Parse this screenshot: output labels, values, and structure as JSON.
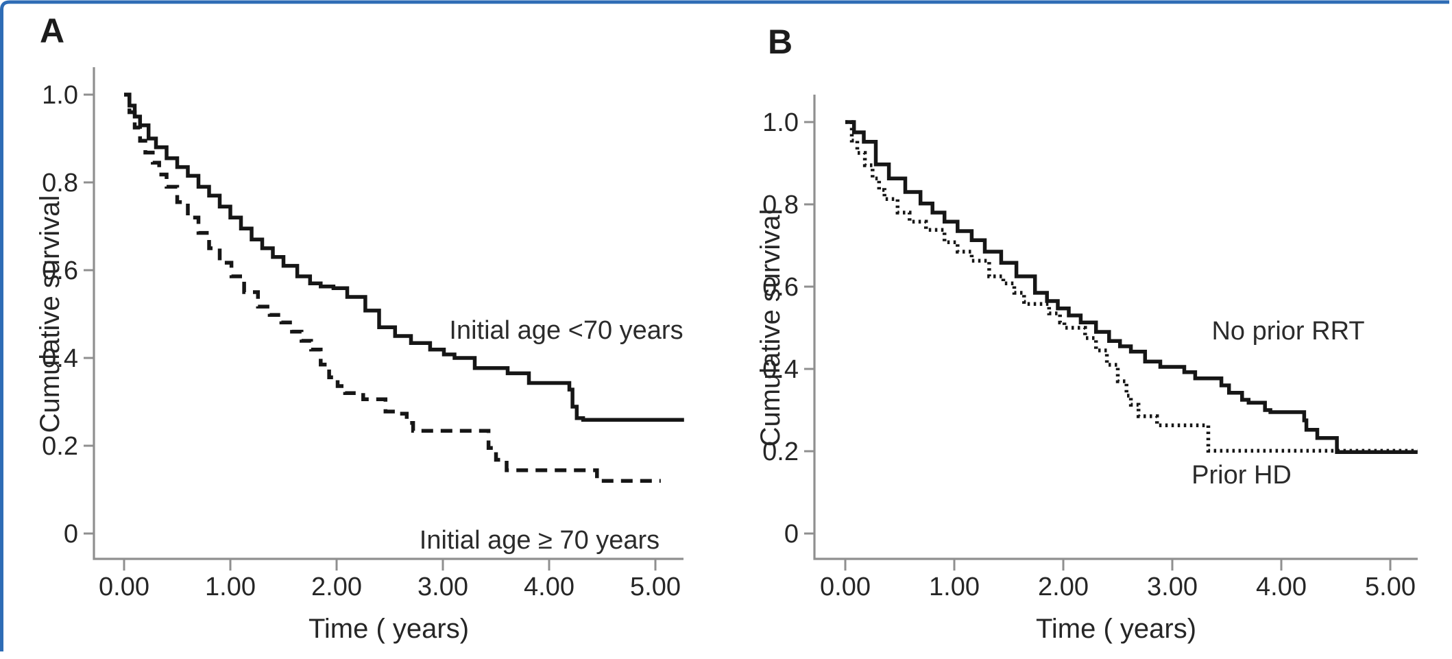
{
  "figure": {
    "border_color": "#2e6cb5",
    "background": "#ffffff",
    "curve_color": "#161616",
    "axis_color": "#8f8f8f"
  },
  "chart_data": [
    {
      "type": "line",
      "subtype": "kaplan-meier-step",
      "panel": "A",
      "xlabel": "Time ( years)",
      "ylabel": "Cumulative survival",
      "xlim": [
        0,
        5.27
      ],
      "ylim": [
        0,
        1.0
      ],
      "grid": false,
      "legend_position": "inline-annotations",
      "x_tick_labels": [
        "0.00",
        "1.00",
        "2.00",
        "3.00",
        "4.00",
        "5.00"
      ],
      "y_tick_labels": [
        "1.0",
        "0.8",
        "0.6",
        "0.4",
        "0.2",
        "0"
      ],
      "series": [
        {
          "name": "Initial age <70 years",
          "style": "solid",
          "points": [
            [
              0,
              1.0
            ],
            [
              0.05,
              0.975
            ],
            [
              0.1,
              0.95
            ],
            [
              0.15,
              0.93
            ],
            [
              0.23,
              0.9
            ],
            [
              0.3,
              0.88
            ],
            [
              0.4,
              0.855
            ],
            [
              0.5,
              0.835
            ],
            [
              0.6,
              0.815
            ],
            [
              0.7,
              0.79
            ],
            [
              0.8,
              0.77
            ],
            [
              0.9,
              0.745
            ],
            [
              1.0,
              0.72
            ],
            [
              1.1,
              0.695
            ],
            [
              1.2,
              0.67
            ],
            [
              1.3,
              0.65
            ],
            [
              1.4,
              0.63
            ],
            [
              1.5,
              0.61
            ],
            [
              1.63,
              0.586
            ],
            [
              1.75,
              0.57
            ],
            [
              1.85,
              0.563
            ],
            [
              1.97,
              0.559
            ],
            [
              2.1,
              0.539
            ],
            [
              2.27,
              0.508
            ],
            [
              2.4,
              0.47
            ],
            [
              2.55,
              0.45
            ],
            [
              2.7,
              0.434
            ],
            [
              2.88,
              0.419
            ],
            [
              3.01,
              0.408
            ],
            [
              3.11,
              0.4
            ],
            [
              3.3,
              0.377
            ],
            [
              3.61,
              0.365
            ],
            [
              3.81,
              0.343
            ],
            [
              4.19,
              0.328
            ],
            [
              4.22,
              0.289
            ],
            [
              4.26,
              0.263
            ],
            [
              4.32,
              0.259
            ],
            [
              5.27,
              0.259
            ]
          ]
        },
        {
          "name": "Initial age ≥ 70 years",
          "style": "dashed",
          "points": [
            [
              0,
              1.0
            ],
            [
              0.05,
              0.96
            ],
            [
              0.1,
              0.925
            ],
            [
              0.15,
              0.895
            ],
            [
              0.2,
              0.868
            ],
            [
              0.27,
              0.845
            ],
            [
              0.33,
              0.818
            ],
            [
              0.4,
              0.79
            ],
            [
              0.5,
              0.755
            ],
            [
              0.6,
              0.72
            ],
            [
              0.7,
              0.685
            ],
            [
              0.8,
              0.65
            ],
            [
              0.9,
              0.617
            ],
            [
              1.01,
              0.586
            ],
            [
              1.13,
              0.55
            ],
            [
              1.26,
              0.517
            ],
            [
              1.37,
              0.498
            ],
            [
              1.48,
              0.481
            ],
            [
              1.58,
              0.46
            ],
            [
              1.67,
              0.439
            ],
            [
              1.76,
              0.419
            ],
            [
              1.85,
              0.385
            ],
            [
              1.93,
              0.356
            ],
            [
              2.01,
              0.336
            ],
            [
              2.08,
              0.32
            ],
            [
              2.25,
              0.306
            ],
            [
              2.46,
              0.278
            ],
            [
              2.57,
              0.273
            ],
            [
              2.66,
              0.252
            ],
            [
              2.72,
              0.234
            ],
            [
              3.43,
              0.195
            ],
            [
              3.5,
              0.168
            ],
            [
              3.6,
              0.144
            ],
            [
              4.45,
              0.12
            ],
            [
              5.05,
              0.12
            ]
          ]
        }
      ]
    },
    {
      "type": "line",
      "subtype": "kaplan-meier-step",
      "panel": "B",
      "xlabel": "Time ( years)",
      "ylabel": "Cumulative survival",
      "xlim": [
        0,
        5.25
      ],
      "ylim": [
        0,
        1.0
      ],
      "grid": false,
      "legend_position": "inline-annotations",
      "x_tick_labels": [
        "0.00",
        "1.00",
        "2.00",
        "3.00",
        "4.00",
        "5.00"
      ],
      "y_tick_labels": [
        "1.0",
        "0.8",
        "0.6",
        "0.4",
        "0.2",
        "0"
      ],
      "series": [
        {
          "name": "No prior RRT",
          "style": "solid",
          "points": [
            [
              0,
              1.0
            ],
            [
              0.08,
              0.975
            ],
            [
              0.17,
              0.952
            ],
            [
              0.28,
              0.897
            ],
            [
              0.4,
              0.863
            ],
            [
              0.55,
              0.83
            ],
            [
              0.69,
              0.802
            ],
            [
              0.8,
              0.78
            ],
            [
              0.91,
              0.758
            ],
            [
              1.03,
              0.735
            ],
            [
              1.16,
              0.713
            ],
            [
              1.28,
              0.685
            ],
            [
              1.43,
              0.658
            ],
            [
              1.57,
              0.625
            ],
            [
              1.74,
              0.585
            ],
            [
              1.85,
              0.565
            ],
            [
              1.95,
              0.547
            ],
            [
              2.05,
              0.53
            ],
            [
              2.16,
              0.513
            ],
            [
              2.3,
              0.49
            ],
            [
              2.42,
              0.468
            ],
            [
              2.52,
              0.455
            ],
            [
              2.62,
              0.442
            ],
            [
              2.75,
              0.418
            ],
            [
              2.89,
              0.405
            ],
            [
              3.11,
              0.392
            ],
            [
              3.21,
              0.377
            ],
            [
              3.45,
              0.36
            ],
            [
              3.52,
              0.342
            ],
            [
              3.64,
              0.325
            ],
            [
              3.7,
              0.318
            ],
            [
              3.85,
              0.3
            ],
            [
              3.9,
              0.295
            ],
            [
              4.21,
              0.275
            ],
            [
              4.23,
              0.252
            ],
            [
              4.33,
              0.232
            ],
            [
              4.51,
              0.198
            ],
            [
              5.25,
              0.198
            ]
          ]
        },
        {
          "name": "Prior HD",
          "style": "dotted",
          "points": [
            [
              0,
              1.0
            ],
            [
              0.06,
              0.955
            ],
            [
              0.11,
              0.925
            ],
            [
              0.18,
              0.895
            ],
            [
              0.25,
              0.863
            ],
            [
              0.31,
              0.835
            ],
            [
              0.36,
              0.813
            ],
            [
              0.48,
              0.78
            ],
            [
              0.59,
              0.758
            ],
            [
              0.74,
              0.738
            ],
            [
              0.91,
              0.708
            ],
            [
              1.03,
              0.685
            ],
            [
              1.16,
              0.663
            ],
            [
              1.32,
              0.625
            ],
            [
              1.45,
              0.608
            ],
            [
              1.55,
              0.585
            ],
            [
              1.64,
              0.563
            ],
            [
              1.66,
              0.558
            ],
            [
              1.87,
              0.535
            ],
            [
              1.97,
              0.513
            ],
            [
              2.01,
              0.5
            ],
            [
              2.2,
              0.475
            ],
            [
              2.3,
              0.445
            ],
            [
              2.4,
              0.41
            ],
            [
              2.5,
              0.37
            ],
            [
              2.58,
              0.335
            ],
            [
              2.62,
              0.313
            ],
            [
              2.69,
              0.285
            ],
            [
              2.86,
              0.267
            ],
            [
              2.87,
              0.263
            ],
            [
              3.33,
              0.201
            ],
            [
              5.25,
              0.201
            ]
          ]
        }
      ]
    }
  ]
}
